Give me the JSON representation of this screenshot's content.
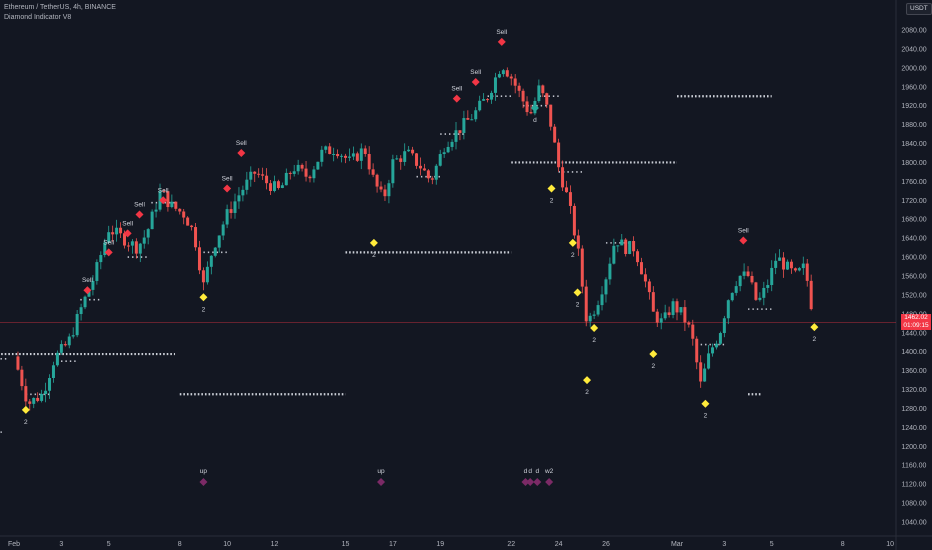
{
  "header": {
    "symbol_line": "Ethereum / TetherUS, 4h, BINANCE",
    "indicator": "Diamond Indicator V8"
  },
  "currency_button": "USDT",
  "last_price": {
    "value": "1462.02",
    "countdown": "01:09:15"
  },
  "colors": {
    "background": "#131722",
    "up": "#26a69a",
    "down": "#ef5350",
    "sell_marker": "#f23645",
    "buy_marker": "#ffeb3b",
    "dots": "#e0e3eb",
    "purple_marker": "#7b2a66",
    "teal_marker": "#26a69a"
  },
  "chart_data": {
    "type": "candlestick",
    "ylim": [
      1020,
      2120
    ],
    "y_ticks": [
      2080,
      2040,
      2000,
      1960,
      1920,
      1880,
      1840,
      1800,
      1760,
      1720,
      1680,
      1640,
      1600,
      1560,
      1520,
      1480,
      1440,
      1400,
      1360,
      1320,
      1280,
      1240,
      1200,
      1160,
      1120,
      1080,
      1040
    ],
    "x_ticks": [
      {
        "label": "Feb",
        "day": 1
      },
      {
        "label": "3",
        "day": 3
      },
      {
        "label": "5",
        "day": 5
      },
      {
        "label": "8",
        "day": 8
      },
      {
        "label": "10",
        "day": 10
      },
      {
        "label": "12",
        "day": 12
      },
      {
        "label": "15",
        "day": 15
      },
      {
        "label": "17",
        "day": 17
      },
      {
        "label": "19",
        "day": 19
      },
      {
        "label": "22",
        "day": 22
      },
      {
        "label": "24",
        "day": 24
      },
      {
        "label": "26",
        "day": 26
      },
      {
        "label": "Mar",
        "day": 29
      },
      {
        "label": "3",
        "day": 31
      },
      {
        "label": "5",
        "day": 33
      },
      {
        "label": "8",
        "day": 36
      },
      {
        "label": "10",
        "day": 38
      }
    ],
    "close_anchors": [
      [
        0.0,
        1390
      ],
      [
        0.6,
        1290
      ],
      [
        1.2,
        1310
      ],
      [
        1.7,
        1385
      ],
      [
        2.3,
        1420
      ],
      [
        2.9,
        1500
      ],
      [
        3.4,
        1560
      ],
      [
        4.0,
        1660
      ],
      [
        4.6,
        1640
      ],
      [
        5.2,
        1620
      ],
      [
        5.6,
        1650
      ],
      [
        6.2,
        1740
      ],
      [
        6.6,
        1710
      ],
      [
        7.2,
        1690
      ],
      [
        7.6,
        1650
      ],
      [
        8.0,
        1540
      ],
      [
        8.4,
        1620
      ],
      [
        9.0,
        1690
      ],
      [
        9.6,
        1740
      ],
      [
        10.2,
        1780
      ],
      [
        10.6,
        1760
      ],
      [
        11.2,
        1740
      ],
      [
        11.8,
        1790
      ],
      [
        12.4,
        1770
      ],
      [
        13.0,
        1820
      ],
      [
        13.6,
        1830
      ],
      [
        14.2,
        1800
      ],
      [
        14.8,
        1830
      ],
      [
        15.2,
        1760
      ],
      [
        15.6,
        1720
      ],
      [
        16.0,
        1800
      ],
      [
        16.6,
        1820
      ],
      [
        17.2,
        1790
      ],
      [
        17.6,
        1760
      ],
      [
        18.2,
        1840
      ],
      [
        18.8,
        1870
      ],
      [
        19.4,
        1900
      ],
      [
        20.0,
        1940
      ],
      [
        20.6,
        2010
      ],
      [
        21.0,
        1980
      ],
      [
        21.4,
        1940
      ],
      [
        21.8,
        1900
      ],
      [
        22.2,
        1960
      ],
      [
        22.6,
        1900
      ],
      [
        23.0,
        1790
      ],
      [
        23.4,
        1720
      ],
      [
        23.8,
        1620
      ],
      [
        24.2,
        1460
      ],
      [
        24.6,
        1500
      ],
      [
        25.0,
        1560
      ],
      [
        25.4,
        1640
      ],
      [
        25.8,
        1620
      ],
      [
        26.2,
        1620
      ],
      [
        26.6,
        1560
      ],
      [
        27.0,
        1480
      ],
      [
        27.4,
        1460
      ],
      [
        27.8,
        1500
      ],
      [
        28.2,
        1480
      ],
      [
        28.6,
        1440
      ],
      [
        29.0,
        1330
      ],
      [
        29.4,
        1400
      ],
      [
        29.8,
        1440
      ],
      [
        30.2,
        1520
      ],
      [
        30.6,
        1560
      ],
      [
        31.0,
        1560
      ],
      [
        31.4,
        1500
      ],
      [
        31.8,
        1540
      ],
      [
        32.2,
        1600
      ],
      [
        32.6,
        1580
      ],
      [
        33.0,
        1560
      ],
      [
        33.4,
        1580
      ],
      [
        33.8,
        1462
      ]
    ],
    "sell_signals": [
      {
        "day": 3.1,
        "price": 1530,
        "label": "Sell"
      },
      {
        "day": 4.0,
        "price": 1610,
        "label": "Sell"
      },
      {
        "day": 4.8,
        "price": 1650,
        "label": "Sell"
      },
      {
        "day": 5.3,
        "price": 1690,
        "label": "Sell"
      },
      {
        "day": 6.3,
        "price": 1720,
        "label": "Sell"
      },
      {
        "day": 9.0,
        "price": 1745,
        "label": "Sell"
      },
      {
        "day": 9.6,
        "price": 1820,
        "label": "Sell"
      },
      {
        "day": 18.7,
        "price": 1935,
        "label": "Sell"
      },
      {
        "day": 19.5,
        "price": 1970,
        "label": "Sell"
      },
      {
        "day": 20.6,
        "price": 2055,
        "label": "Sell"
      },
      {
        "day": 30.8,
        "price": 1635,
        "label": "Sell"
      }
    ],
    "buy_signals": [
      {
        "day": 0.5,
        "price": 1277,
        "label": "2"
      },
      {
        "day": 8.0,
        "price": 1515,
        "label": "2"
      },
      {
        "day": 15.2,
        "price": 1630,
        "label": "2"
      },
      {
        "day": 22.7,
        "price": 1745,
        "label": "2"
      },
      {
        "day": 23.6,
        "price": 1630,
        "label": "2"
      },
      {
        "day": 23.8,
        "price": 1525,
        "label": "2"
      },
      {
        "day": 24.2,
        "price": 1340,
        "label": "2"
      },
      {
        "day": 24.5,
        "price": 1450,
        "label": "2"
      },
      {
        "day": 27.0,
        "price": 1395,
        "label": "2"
      },
      {
        "day": 29.2,
        "price": 1290,
        "label": "2"
      },
      {
        "day": 33.8,
        "price": 1452,
        "label": "2"
      }
    ],
    "teal_signal": {
      "day": 22.0,
      "price": 1915,
      "label": "d"
    },
    "bottom_markers": [
      {
        "day": 8.0,
        "label": "up"
      },
      {
        "day": 15.5,
        "label": "up"
      },
      {
        "day": 21.6,
        "label": "d"
      },
      {
        "day": 21.8,
        "label": "d"
      },
      {
        "day": 22.1,
        "label": "d"
      },
      {
        "day": 22.6,
        "label": "w2"
      }
    ],
    "level_lines": [
      {
        "d1": 0.0,
        "d2": 7.8,
        "price": 1395,
        "weight": "heavy"
      },
      {
        "d1": -0.5,
        "d2": 0.8,
        "price": 1385,
        "weight": "light"
      },
      {
        "d1": -0.5,
        "d2": 0.6,
        "price": 1230,
        "weight": "light"
      },
      {
        "d1": 1.5,
        "d2": 2.6,
        "price": 1310,
        "weight": "light"
      },
      {
        "d1": 2.8,
        "d2": 3.7,
        "price": 1380,
        "weight": "light"
      },
      {
        "d1": 3.8,
        "d2": 4.7,
        "price": 1510,
        "weight": "light"
      },
      {
        "d1": 5.8,
        "d2": 6.7,
        "price": 1600,
        "weight": "light"
      },
      {
        "d1": 6.8,
        "d2": 7.8,
        "price": 1715,
        "weight": "light"
      },
      {
        "d1": 8.0,
        "d2": 15.0,
        "price": 1310,
        "weight": "heavy"
      },
      {
        "d1": 9.0,
        "d2": 10.0,
        "price": 1610,
        "weight": "light"
      },
      {
        "d1": 15.0,
        "d2": 22.0,
        "price": 1610,
        "weight": "heavy"
      },
      {
        "d1": 18.0,
        "d2": 19.0,
        "price": 1770,
        "weight": "light"
      },
      {
        "d1": 19.0,
        "d2": 20.0,
        "price": 1860,
        "weight": "light"
      },
      {
        "d1": 21.0,
        "d2": 22.0,
        "price": 1940,
        "weight": "light"
      },
      {
        "d1": 22.0,
        "d2": 29.0,
        "price": 1800,
        "weight": "heavy"
      },
      {
        "d1": 22.5,
        "d2": 23.5,
        "price": 1920,
        "weight": "light"
      },
      {
        "d1": 23.2,
        "d2": 24.1,
        "price": 1940,
        "weight": "light"
      },
      {
        "d1": 24.0,
        "d2": 25.0,
        "price": 1780,
        "weight": "light"
      },
      {
        "d1": 26.0,
        "d2": 27.0,
        "price": 1630,
        "weight": "light"
      },
      {
        "d1": 29.0,
        "d2": 33.0,
        "price": 1940,
        "weight": "heavy"
      },
      {
        "d1": 30.0,
        "d2": 31.0,
        "price": 1415,
        "weight": "light"
      },
      {
        "d1": 32.0,
        "d2": 33.0,
        "price": 1490,
        "weight": "light"
      },
      {
        "d1": 32.0,
        "d2": 32.6,
        "price": 1310,
        "weight": "heavy"
      }
    ]
  }
}
